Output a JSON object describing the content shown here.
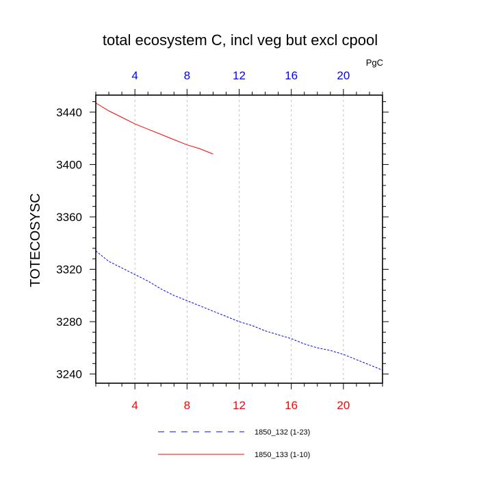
{
  "chart_data": {
    "type": "line",
    "title": "total ecosystem C, incl veg but excl cpool",
    "ylabel": "TOTECOSYSC",
    "units": "PgC",
    "xlim": [
      1,
      23
    ],
    "ylim": [
      3233,
      3453
    ],
    "x_ticks": [
      4,
      8,
      12,
      16,
      20
    ],
    "y_ticks": [
      3240,
      3280,
      3320,
      3360,
      3400,
      3440
    ],
    "grid_x": true,
    "colors": {
      "bottom_tick_labels": "#ff0000",
      "top_tick_labels": "#0000ff"
    },
    "series": [
      {
        "name": "1850_132 (1-23)",
        "color": "#0000ff",
        "dash": "dashed",
        "x": [
          1,
          2,
          3,
          4,
          5,
          6,
          7,
          8,
          9,
          10,
          11,
          12,
          13,
          14,
          15,
          16,
          17,
          18,
          19,
          20,
          21,
          22,
          23
        ],
        "y": [
          3334,
          3326,
          3321,
          3316,
          3311,
          3305,
          3300,
          3296,
          3292,
          3288,
          3284,
          3280,
          3277,
          3273,
          3270,
          3267,
          3263,
          3260,
          3258,
          3255,
          3251,
          3247,
          3243
        ]
      },
      {
        "name": "1850_133 (1-10)",
        "color": "#ff0000",
        "dash": "solid",
        "x": [
          1,
          2,
          3,
          4,
          5,
          6,
          7,
          8,
          9,
          10
        ],
        "y": [
          3447,
          3441,
          3436,
          3431,
          3427,
          3423,
          3419,
          3415,
          3412,
          3408
        ]
      }
    ]
  }
}
